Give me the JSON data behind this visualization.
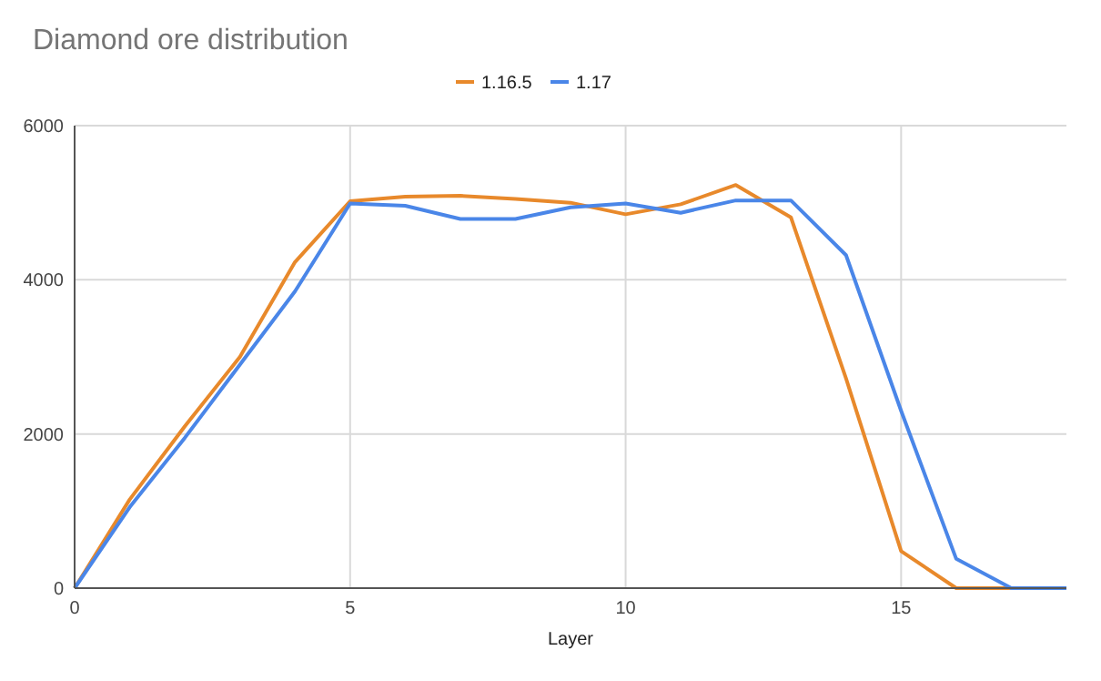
{
  "chart_data": {
    "type": "line",
    "title": "Diamond ore distribution",
    "xlabel": "Layer",
    "x": [
      0,
      1,
      2,
      3,
      4,
      5,
      6,
      7,
      8,
      9,
      10,
      11,
      12,
      13,
      14,
      15,
      16,
      17,
      18
    ],
    "series": [
      {
        "name": "1.16.5",
        "color": "#e8892b",
        "values": [
          0,
          1150,
          2100,
          3000,
          4230,
          5020,
          5080,
          5090,
          5050,
          5000,
          4850,
          4980,
          5230,
          4810,
          2720,
          480,
          0,
          0,
          0
        ]
      },
      {
        "name": "1.17",
        "color": "#4a86e8",
        "values": [
          0,
          1050,
          1950,
          2900,
          3850,
          4990,
          4960,
          4790,
          4790,
          4940,
          4990,
          4870,
          5030,
          5030,
          4320,
          2300,
          380,
          0,
          0
        ]
      }
    ],
    "xlim": [
      0,
      18
    ],
    "xticks": [
      0,
      5,
      10,
      15
    ],
    "ylim": [
      0,
      6000
    ],
    "yticks": [
      0,
      2000,
      4000,
      6000
    ],
    "grid": true,
    "legend": "top"
  }
}
